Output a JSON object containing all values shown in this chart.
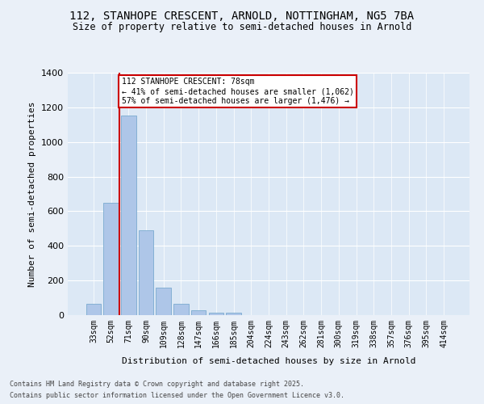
{
  "title_line1": "112, STANHOPE CRESCENT, ARNOLD, NOTTINGHAM, NG5 7BA",
  "title_line2": "Size of property relative to semi-detached houses in Arnold",
  "xlabel": "Distribution of semi-detached houses by size in Arnold",
  "ylabel": "Number of semi-detached properties",
  "categories": [
    "33sqm",
    "52sqm",
    "71sqm",
    "90sqm",
    "109sqm",
    "128sqm",
    "147sqm",
    "166sqm",
    "185sqm",
    "204sqm",
    "224sqm",
    "243sqm",
    "262sqm",
    "281sqm",
    "300sqm",
    "319sqm",
    "338sqm",
    "357sqm",
    "376sqm",
    "395sqm",
    "414sqm"
  ],
  "values": [
    65,
    648,
    1155,
    490,
    160,
    65,
    28,
    15,
    12,
    0,
    0,
    0,
    0,
    0,
    0,
    0,
    0,
    0,
    0,
    0,
    0
  ],
  "bar_color": "#aec6e8",
  "bar_edge_color": "#7aaad0",
  "bg_color": "#dce8f5",
  "fig_bg_color": "#eaf0f8",
  "property_line_idx": 2,
  "annotation_title": "112 STANHOPE CRESCENT: 78sqm",
  "annotation_line2": "← 41% of semi-detached houses are smaller (1,062)",
  "annotation_line3": "57% of semi-detached houses are larger (1,476) →",
  "annotation_box_color": "#cc0000",
  "ylim": [
    0,
    1400
  ],
  "yticks": [
    0,
    200,
    400,
    600,
    800,
    1000,
    1200,
    1400
  ],
  "footer_line1": "Contains HM Land Registry data © Crown copyright and database right 2025.",
  "footer_line2": "Contains public sector information licensed under the Open Government Licence v3.0."
}
